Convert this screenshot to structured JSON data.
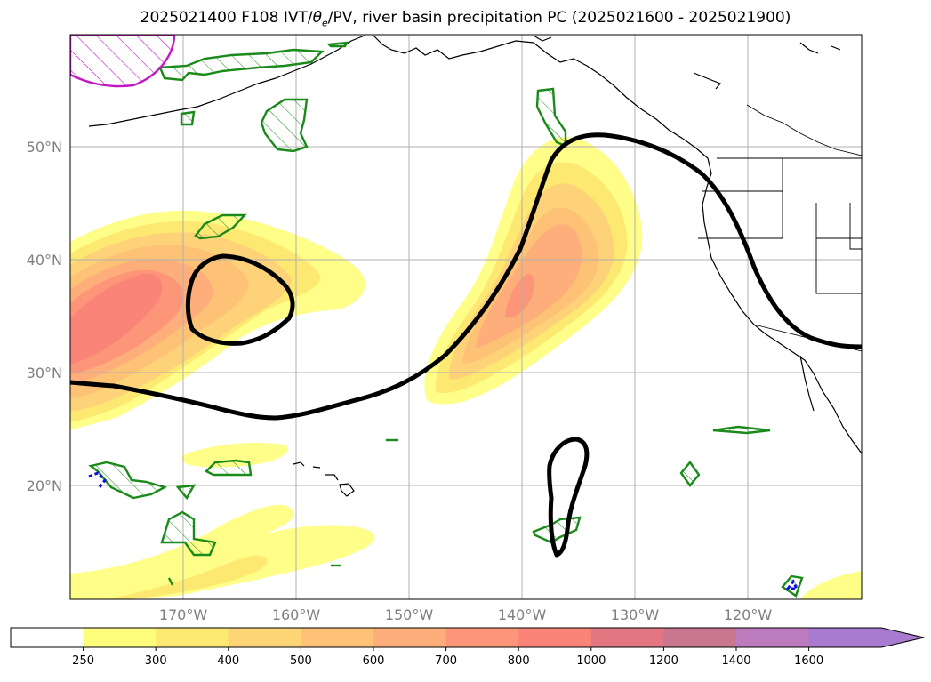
{
  "title": {
    "prefix": "2025021400 F108 IVT/",
    "theta": "θ",
    "sub": "e",
    "suffix": "/PV, river basin precipitation PC (2025021600 - 2025021900)"
  },
  "lat_labels": [
    "50°N",
    "40°N",
    "30°N",
    "20°N"
  ],
  "lon_labels": [
    "170°W",
    "160°W",
    "150°W",
    "140°W",
    "130°W",
    "120°W"
  ],
  "colorbar": {
    "ticks": [
      "250",
      "300",
      "400",
      "500",
      "600",
      "700",
      "800",
      "1000",
      "1200",
      "1400",
      "1600"
    ],
    "colors": [
      "#ffffff",
      "#fdfd7c",
      "#fde872",
      "#fdd476",
      "#fdc276",
      "#fdae7a",
      "#fd9678",
      "#fb8479",
      "#e27782",
      "#c9768f",
      "#bb7bbd",
      "#a97bd0"
    ],
    "extend": "max"
  },
  "colors": {
    "ivt_fill_light": "#fefe88",
    "ivt_fill_mid": "#fdd278",
    "ivt_fill_dark": "#fc8c7c",
    "pv_contour": "#000000",
    "precip_contour": "#1a8a1a",
    "hatch_magenta": "#c218c2",
    "blue_marks": "#1010e0",
    "grid": "#b0b0b0"
  }
}
